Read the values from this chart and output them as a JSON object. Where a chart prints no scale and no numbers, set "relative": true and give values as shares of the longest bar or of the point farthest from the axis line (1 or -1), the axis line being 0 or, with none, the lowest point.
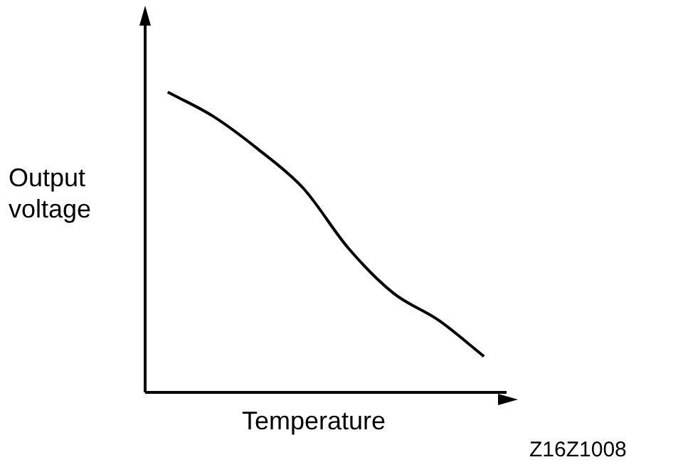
{
  "chart_data": {
    "type": "line",
    "relative": true,
    "xlabel": "Temperature",
    "ylabel": "Output voltage",
    "annotations": [
      "Z16Z1008"
    ],
    "categories": [
      null,
      null,
      null,
      null,
      null,
      null,
      null,
      null
    ],
    "series": [
      {
        "color": "#000000",
        "values": [
          1,
          0.92,
          0.81,
          0.68,
          0.48,
          0.33,
          0.24,
          0.12
        ]
      }
    ],
    "legend": false,
    "marker": "none",
    "line_style": "solid"
  }
}
